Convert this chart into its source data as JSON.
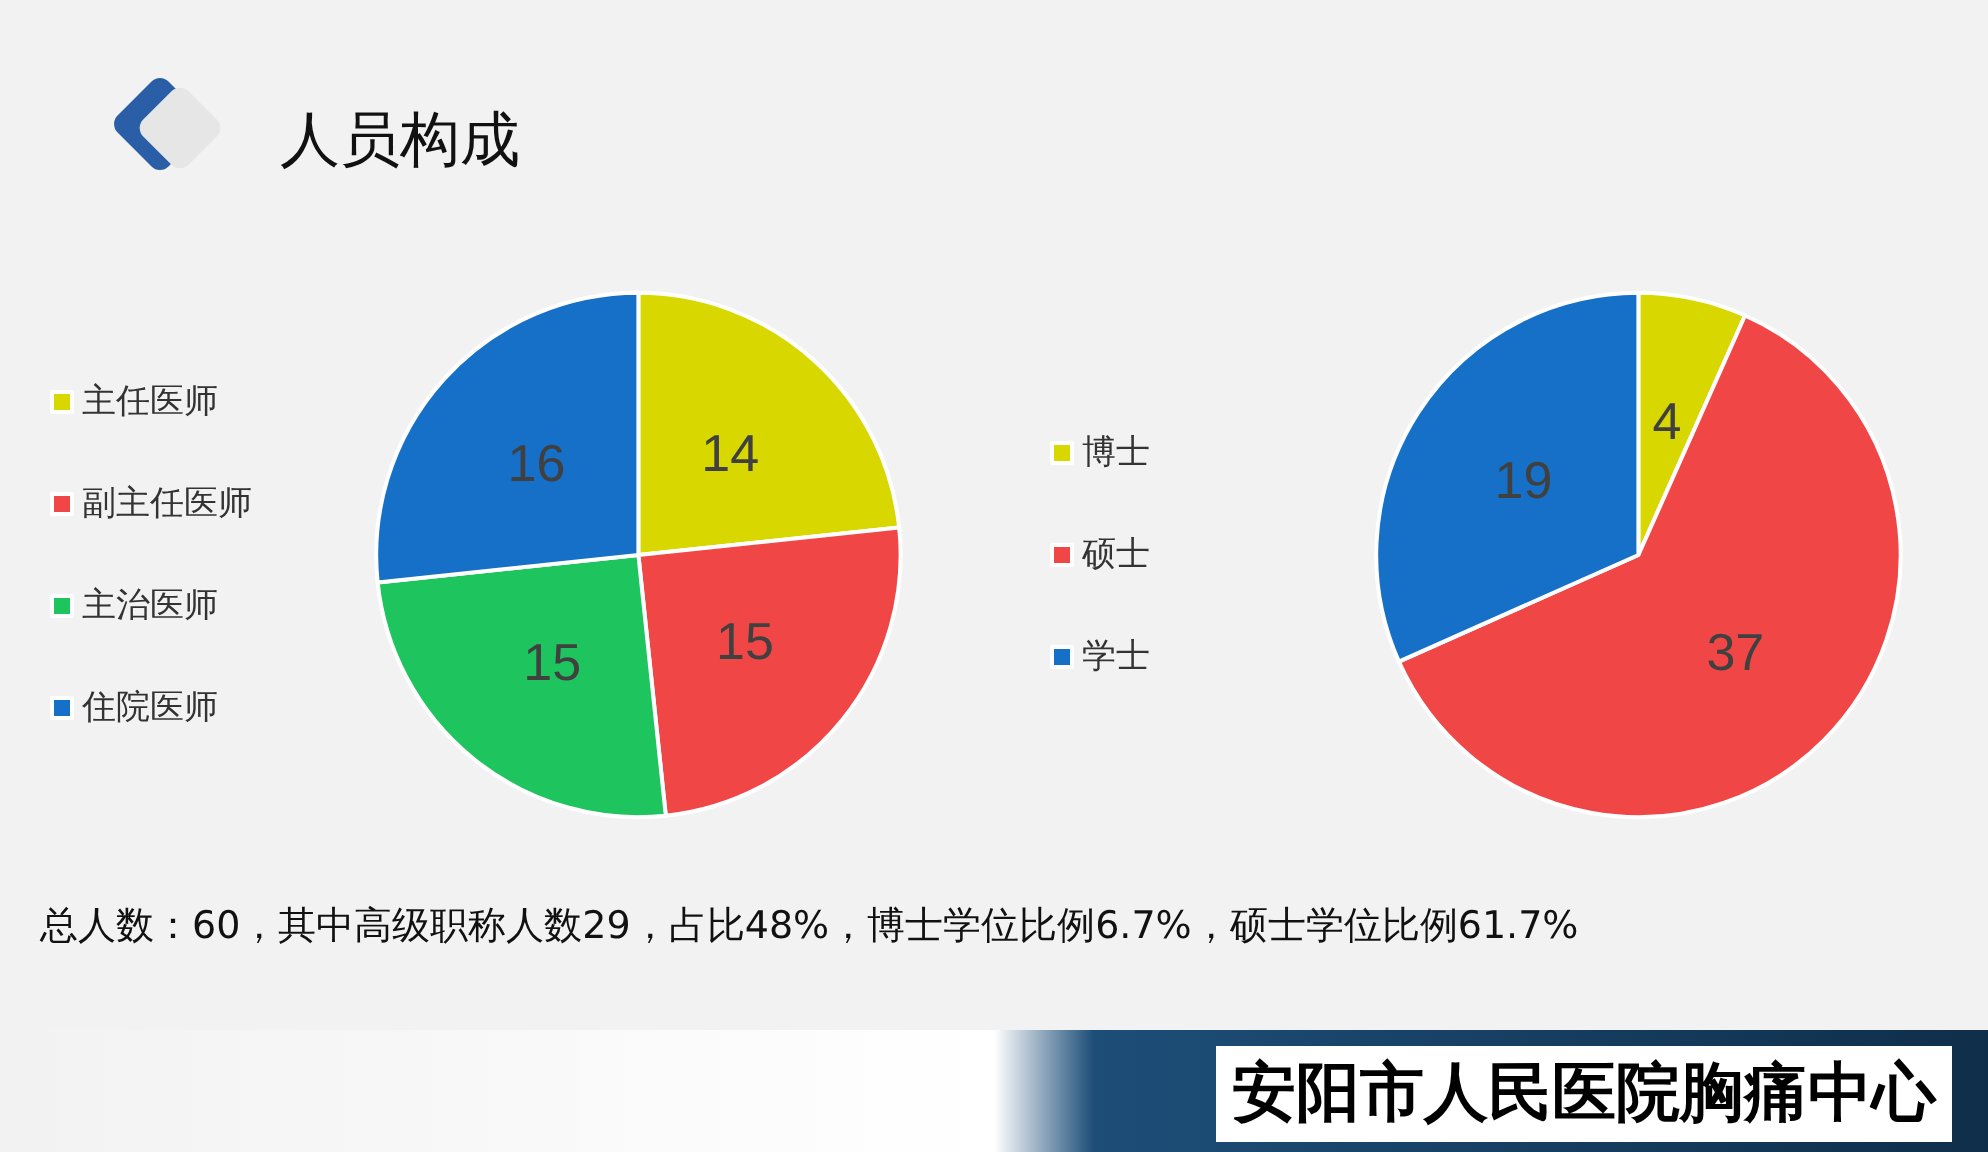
{
  "chart_data": [
    {
      "type": "pie",
      "title": "人员构成",
      "categories": [
        "主任医师",
        "副主任医师",
        "主治医师",
        "住院医师"
      ],
      "values": [
        14,
        15,
        15,
        16
      ],
      "colors": [
        "#d8d800",
        "#f04646",
        "#1ec45e",
        "#1670c8"
      ],
      "data_labels": true,
      "legend": "left",
      "annotations": [
        "总人数：60，其中高级职称人数29，占比48%，博士学位比例6.7%，硕士学位比例61.7%",
        "安阳市人民医院胸痛中心"
      ]
    },
    {
      "type": "pie",
      "categories": [
        "博士",
        "硕士",
        "学士"
      ],
      "values": [
        4,
        37,
        19
      ],
      "colors": [
        "#d8d800",
        "#f04646",
        "#1670c8"
      ],
      "data_labels": true,
      "legend": "left"
    }
  ]
}
